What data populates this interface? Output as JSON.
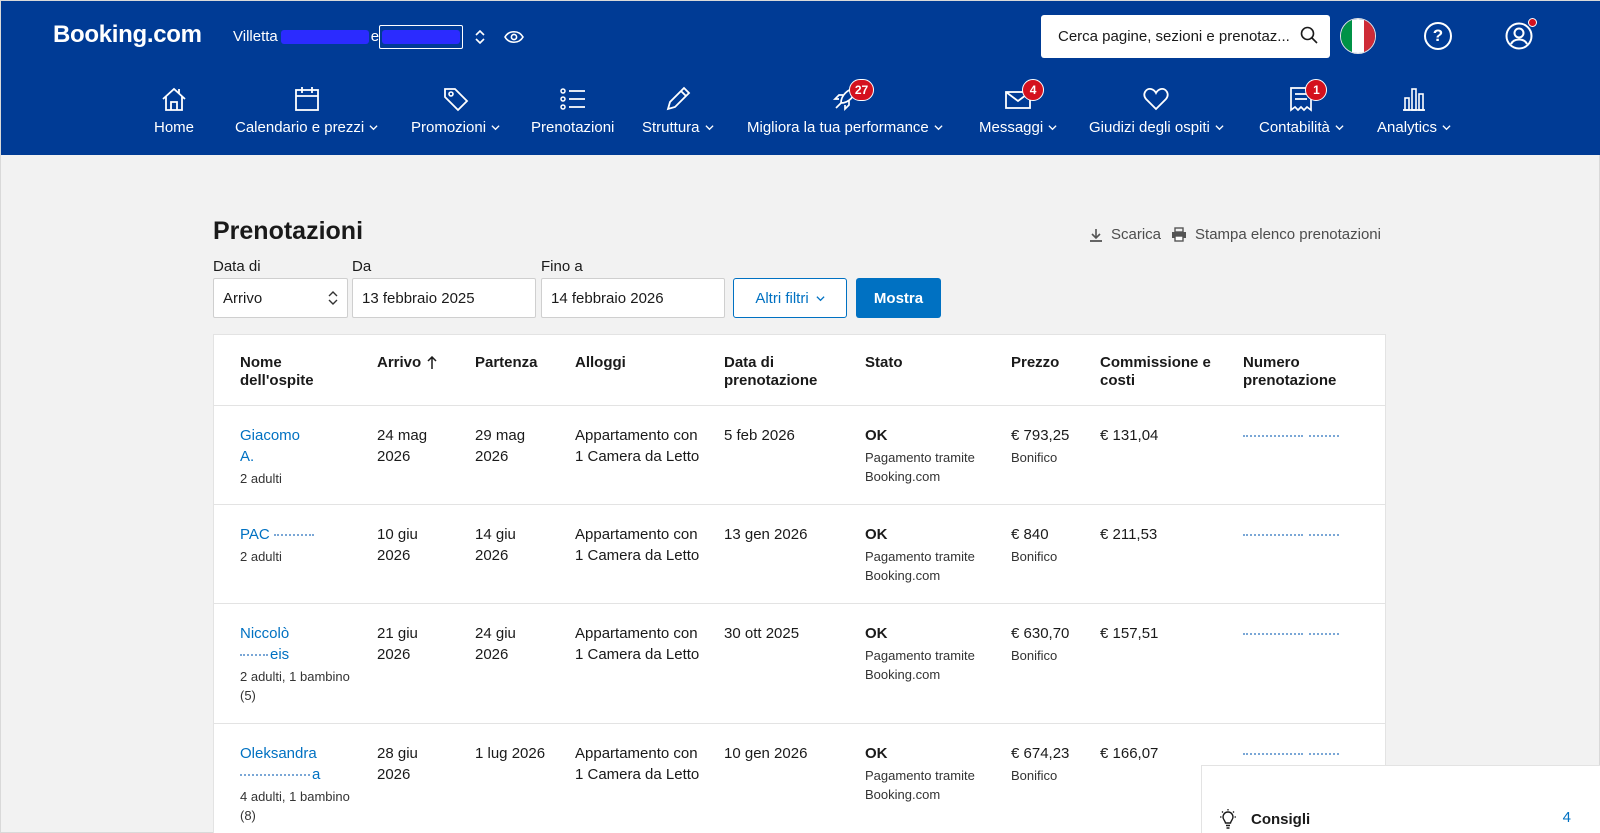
{
  "header": {
    "logo": "Booking.com",
    "property_prefix": "Villetta",
    "property_suffix": "e",
    "search_placeholder": "Cerca pagine, sezioni e prenotaz...",
    "colors": {
      "primary": "#003b95",
      "accent": "#0071c2",
      "badge": "#d4111e"
    }
  },
  "nav": {
    "home": "Home",
    "calendar": "Calendario e prezzi",
    "promotions": "Promozioni",
    "reservations": "Prenotazioni",
    "property": "Struttura",
    "performance": "Migliora la tua performance",
    "performance_badge": "27",
    "messages": "Messaggi",
    "messages_badge": "4",
    "reviews": "Giudizi degli ospiti",
    "finance": "Contabilità",
    "finance_badge": "1",
    "analytics": "Analytics"
  },
  "page": {
    "title": "Prenotazioni",
    "download": "Scarica",
    "print": "Stampa elenco prenotazioni"
  },
  "filters": {
    "date_type_label": "Data di",
    "date_type_value": "Arrivo",
    "from_label": "Da",
    "from_value": "13 febbraio 2025",
    "to_label": "Fino a",
    "to_value": "14 febbraio 2026",
    "more_filters": "Altri filtri",
    "show": "Mostra"
  },
  "table": {
    "headers": {
      "guest": "Nome dell'ospite",
      "arrival": "Arrivo",
      "departure": "Partenza",
      "rooms": "Alloggi",
      "booked_on": "Data di prenotazione",
      "status": "Stato",
      "price": "Prezzo",
      "commission": "Commissione e costi",
      "number": "Numero prenotazione"
    },
    "rows": [
      {
        "guest": "Giacomo",
        "guest_line2": "A.",
        "guests": "2 adulti",
        "arrival": "24 mag 2026",
        "departure": "29 mag 2026",
        "room": "Appartamento con 1 Camera da Letto",
        "booked": "5 feb 2026",
        "status": "OK",
        "payment": "Pagamento tramite Booking.com",
        "price": "€ 793,25",
        "method": "Bonifico",
        "commission": "€ 131,04"
      },
      {
        "guest": "PAC",
        "guest_line2": "",
        "guests": "2 adulti",
        "arrival": "10 giu 2026",
        "departure": "14 giu 2026",
        "room": "Appartamento con 1 Camera da Letto",
        "booked": "13 gen 2026",
        "status": "OK",
        "payment": "Pagamento tramite Booking.com",
        "price": "€ 840",
        "method": "Bonifico",
        "commission": "€ 211,53"
      },
      {
        "guest": "Niccolò",
        "guest_line2": "eis",
        "guests": "2 adulti, 1 bambino (5)",
        "arrival": "21 giu 2026",
        "departure": "24 giu 2026",
        "room": "Appartamento con 1 Camera da Letto",
        "booked": "30 ott 2025",
        "status": "OK",
        "payment": "Pagamento tramite Booking.com",
        "price": "€ 630,70",
        "method": "Bonifico",
        "commission": "€ 157,51"
      },
      {
        "guest": "Oleksandra",
        "guest_line2": "a",
        "guests": "4 adulti, 1 bambino (8)",
        "arrival": "28 giu 2026",
        "departure": "1 lug 2026",
        "room": "Appartamento con 1 Camera da Letto",
        "booked": "10 gen 2026",
        "status": "OK",
        "payment": "Pagamento tramite Booking.com",
        "price": "€ 674,23",
        "method": "Bonifico",
        "commission": "€ 166,07"
      }
    ]
  },
  "tips": {
    "label": "Consigli",
    "count": "4"
  }
}
